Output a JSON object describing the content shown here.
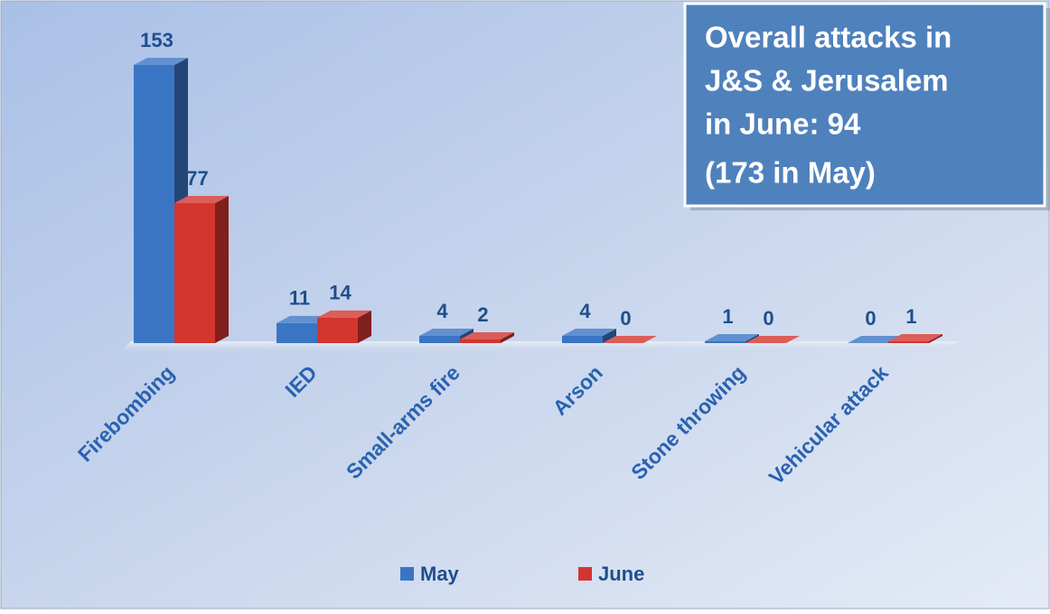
{
  "chart_data": {
    "type": "bar",
    "categories": [
      "Firebombing",
      "IED",
      "Small-arms fire",
      "Arson",
      "Stone throwing",
      "Vehicular attack"
    ],
    "series": [
      {
        "name": "May",
        "color": "#3a75c4",
        "values": [
          153,
          11,
          4,
          4,
          1,
          0
        ]
      },
      {
        "name": "June",
        "color": "#d3352f",
        "values": [
          77,
          14,
          2,
          0,
          0,
          1
        ]
      }
    ],
    "annotation": [
      " Overall attacks in",
      "J&S & Jerusalem",
      "in June: 94",
      "(173 in May)"
    ]
  }
}
